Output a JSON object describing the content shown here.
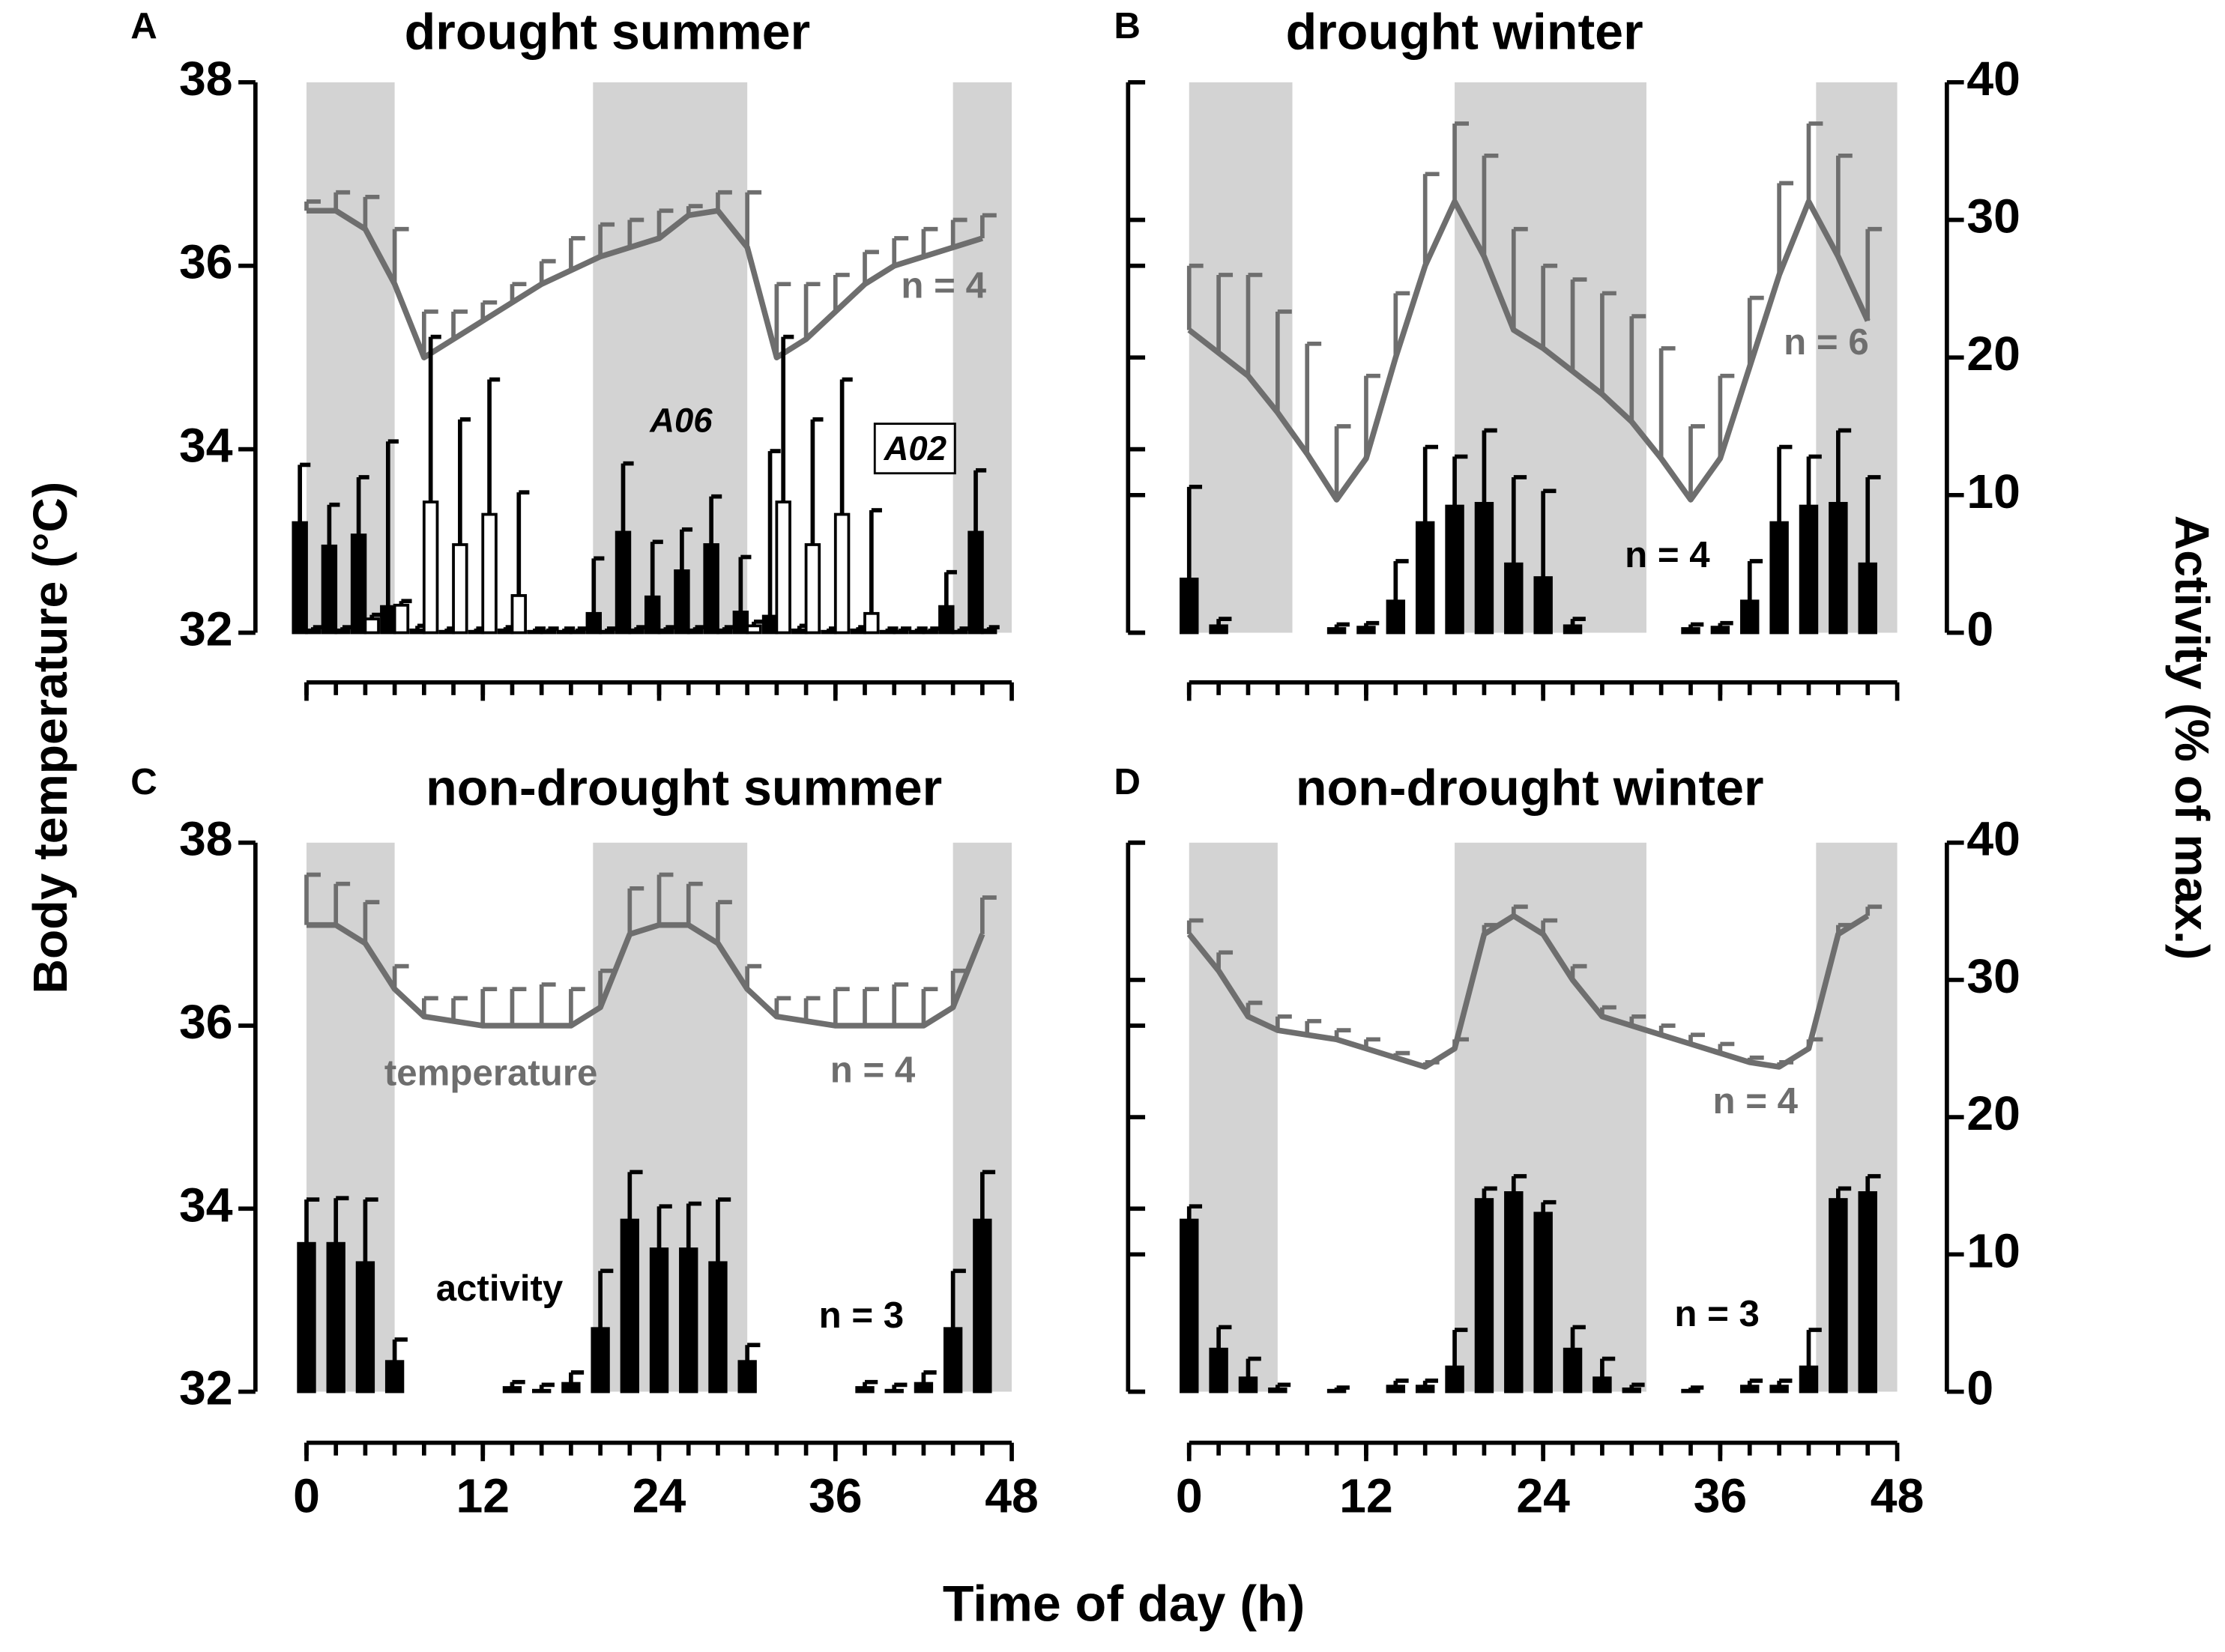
{
  "figure": {
    "ylabel": "Body temperature (°C)",
    "y2label": "Activity (% of max.)",
    "xlabel": "Time of day (h)"
  },
  "chart_data": [
    {
      "type": "bar_line",
      "letter": "A",
      "title": "drought summer",
      "x": [
        0,
        2,
        4,
        6,
        8,
        10,
        12,
        14,
        16,
        18,
        20,
        22,
        24,
        26,
        28,
        30,
        32,
        34,
        36,
        38,
        40,
        42,
        44,
        46
      ],
      "xlim": [
        0,
        48
      ],
      "xticks": [
        0,
        12,
        24,
        36,
        48
      ],
      "xticklabels": false,
      "ylim": [
        32,
        38
      ],
      "yticks": [
        32,
        34,
        36,
        38
      ],
      "yticklabels": true,
      "y2lim": [
        0,
        40
      ],
      "y2ticks": [
        0,
        10,
        20,
        30,
        40
      ],
      "y2ticklabels": false,
      "shade": [
        [
          0,
          6
        ],
        [
          19.5,
          30
        ],
        [
          44,
          48
        ]
      ],
      "shade_color": "#d3d3d3",
      "series": [
        {
          "kind": "line",
          "color": "#6e6e6e",
          "values": [
            36.6,
            36.6,
            36.4,
            35.8,
            35.0,
            35.2,
            35.4,
            35.6,
            35.8,
            35.95,
            36.1,
            36.2,
            36.3,
            36.55,
            36.6,
            36.2,
            35.0,
            35.2,
            35.5,
            35.8,
            36.0,
            36.1,
            36.2,
            36.3
          ],
          "errors": [
            0.1,
            0.2,
            0.35,
            0.6,
            0.5,
            0.3,
            0.2,
            0.2,
            0.25,
            0.35,
            0.35,
            0.3,
            0.3,
            0.1,
            0.2,
            0.6,
            0.8,
            0.6,
            0.4,
            0.35,
            0.3,
            0.3,
            0.3,
            0.25
          ]
        },
        {
          "kind": "bar",
          "axis": "y2",
          "name": "A06",
          "color": "#000000",
          "values": [
            8.0,
            6.3,
            7.1,
            1.9,
            0.2,
            0.1,
            0.1,
            0.2,
            0.1,
            0.1,
            1.4,
            7.3,
            2.6,
            4.5,
            6.4,
            1.5,
            1.2,
            0.2,
            0.1,
            0.2,
            0.1,
            0.1,
            1.9,
            7.3
          ],
          "errors": [
            4.2,
            3.0,
            4.2,
            12.0,
            0.3,
            0.2,
            0.2,
            0.2,
            0.2,
            0.2,
            4.0,
            5.0,
            4.0,
            3.0,
            3.5,
            4.0,
            12.0,
            0.3,
            0.2,
            0.2,
            0.2,
            0.2,
            2.5,
            4.5
          ]
        },
        {
          "kind": "bar",
          "axis": "y2",
          "name": "A02",
          "color": "#ffffff",
          "values": [
            0.2,
            0.2,
            1.0,
            2.0,
            9.5,
            6.4,
            8.6,
            2.7,
            0.1,
            0.1,
            0.1,
            0.2,
            0.2,
            0.2,
            0.2,
            0.5,
            9.5,
            6.4,
            8.6,
            1.4,
            0.1,
            0.1,
            0.1,
            0.2
          ],
          "errors": [
            0.2,
            0.2,
            0.3,
            0.3,
            12.0,
            9.1,
            9.8,
            7.5,
            0.2,
            0.2,
            0.2,
            0.2,
            0.2,
            0.2,
            0.2,
            0.3,
            12.0,
            9.1,
            9.8,
            7.5,
            0.2,
            0.2,
            0.2,
            0.2
          ]
        }
      ],
      "annotations": [
        {
          "text": "n = 4",
          "color": "#6e6e6e"
        }
      ]
    },
    {
      "type": "bar_line",
      "letter": "B",
      "title": "drought winter",
      "x": [
        0,
        2,
        4,
        6,
        8,
        10,
        12,
        14,
        16,
        18,
        20,
        22,
        24,
        26,
        28,
        30,
        32,
        34,
        36,
        38,
        40,
        42,
        44,
        46
      ],
      "xlim": [
        0,
        48
      ],
      "xticks": [
        0,
        12,
        24,
        36,
        48
      ],
      "xticklabels": false,
      "ylim": [
        32,
        38
      ],
      "yticks": [
        32,
        34,
        36,
        38
      ],
      "yticklabels": false,
      "y2lim": [
        0,
        40
      ],
      "y2ticks": [
        0,
        10,
        20,
        30,
        40
      ],
      "y2ticklabels": true,
      "shade": [
        [
          0,
          7
        ],
        [
          18,
          31
        ],
        [
          42.5,
          48
        ]
      ],
      "shade_color": "#d3d3d3",
      "series": [
        {
          "kind": "line",
          "color": "#6e6e6e",
          "values": [
            35.3,
            35.05,
            34.8,
            34.4,
            33.95,
            33.45,
            33.9,
            35.0,
            36.0,
            36.7,
            36.1,
            35.3,
            35.1,
            34.85,
            34.6,
            34.3,
            33.9,
            33.45,
            33.9,
            34.9,
            35.9,
            36.7,
            36.1,
            35.4
          ],
          "errors": [
            0.7,
            0.85,
            1.1,
            1.1,
            1.2,
            0.8,
            0.9,
            0.7,
            1.0,
            0.85,
            1.1,
            1.1,
            0.9,
            1.0,
            1.1,
            1.15,
            1.2,
            0.8,
            0.9,
            0.75,
            1.0,
            0.85,
            1.1,
            1.0
          ]
        },
        {
          "kind": "bar",
          "axis": "y2",
          "color": "#000000",
          "values": [
            3.9,
            0.5,
            null,
            null,
            null,
            0.3,
            0.4,
            2.3,
            8.0,
            9.2,
            9.4,
            5.0,
            4.0,
            0.5,
            null,
            null,
            null,
            0.3,
            0.4,
            2.3,
            8.0,
            9.2,
            9.4,
            5.0
          ],
          "errors": [
            6.7,
            0.5,
            null,
            null,
            null,
            0.3,
            0.3,
            2.9,
            5.5,
            3.6,
            5.3,
            6.3,
            6.3,
            0.5,
            null,
            null,
            null,
            0.3,
            0.3,
            2.9,
            5.5,
            3.6,
            5.3,
            6.3
          ]
        }
      ],
      "annotations": [
        {
          "text": "n = 6",
          "color": "#6e6e6e"
        },
        {
          "text": "n = 4",
          "color": "#000000"
        }
      ]
    },
    {
      "type": "bar_line",
      "letter": "C",
      "title": "non-drought summer",
      "x": [
        0,
        2,
        4,
        6,
        8,
        10,
        12,
        14,
        16,
        18,
        20,
        22,
        24,
        26,
        28,
        30,
        32,
        34,
        36,
        38,
        40,
        42,
        44,
        46
      ],
      "xlim": [
        0,
        48
      ],
      "xticks": [
        0,
        12,
        24,
        36,
        48
      ],
      "xticklabels": true,
      "ylim": [
        32,
        38
      ],
      "yticks": [
        32,
        34,
        36,
        38
      ],
      "yticklabels": true,
      "y2lim": [
        0,
        40
      ],
      "y2ticks": [
        0,
        10,
        20,
        30,
        40
      ],
      "y2ticklabels": false,
      "shade": [
        [
          0,
          6
        ],
        [
          19.5,
          30
        ],
        [
          44,
          48
        ]
      ],
      "shade_color": "#d3d3d3",
      "series": [
        {
          "kind": "line",
          "color": "#6e6e6e",
          "values": [
            37.1,
            37.1,
            36.9,
            36.4,
            36.1,
            36.05,
            36.0,
            36.0,
            36.0,
            36.0,
            36.2,
            37.0,
            37.1,
            37.1,
            36.9,
            36.4,
            36.1,
            36.05,
            36.0,
            36.0,
            36.0,
            36.0,
            36.2,
            37.0
          ],
          "errors": [
            0.55,
            0.45,
            0.45,
            0.25,
            0.2,
            0.25,
            0.4,
            0.4,
            0.45,
            0.4,
            0.4,
            0.5,
            0.55,
            0.45,
            0.45,
            0.25,
            0.2,
            0.25,
            0.4,
            0.4,
            0.45,
            0.4,
            0.4,
            0.4
          ]
        },
        {
          "kind": "bar",
          "axis": "y2",
          "color": "#000000",
          "values": [
            10.8,
            10.8,
            9.4,
            2.2,
            null,
            null,
            null,
            0.3,
            0.1,
            0.6,
            4.6,
            12.5,
            10.4,
            10.4,
            9.4,
            2.2,
            null,
            null,
            null,
            0.3,
            0.1,
            0.6,
            4.6,
            12.5
          ],
          "errors": [
            3.2,
            3.3,
            4.6,
            1.6,
            null,
            null,
            null,
            0.4,
            0.4,
            0.8,
            4.2,
            3.5,
            3.1,
            3.3,
            4.6,
            1.2,
            null,
            null,
            null,
            0.4,
            0.4,
            0.8,
            4.2,
            3.5
          ]
        }
      ],
      "annotations": [
        {
          "text": "temperature",
          "color": "#6e6e6e"
        },
        {
          "text": "n = 4",
          "color": "#6e6e6e"
        },
        {
          "text": "activity",
          "color": "#000000"
        },
        {
          "text": "n = 3",
          "color": "#000000"
        }
      ]
    },
    {
      "type": "bar_line",
      "letter": "D",
      "title": "non-drought winter",
      "x": [
        0,
        2,
        4,
        6,
        8,
        10,
        12,
        14,
        16,
        18,
        20,
        22,
        24,
        26,
        28,
        30,
        32,
        34,
        36,
        38,
        40,
        42,
        44,
        46
      ],
      "xlim": [
        0,
        48
      ],
      "xticks": [
        0,
        12,
        24,
        36,
        48
      ],
      "xticklabels": true,
      "ylim": [
        32,
        38
      ],
      "yticks": [
        32,
        34,
        36,
        38
      ],
      "yticklabels": false,
      "y2lim": [
        0,
        40
      ],
      "y2ticks": [
        0,
        10,
        20,
        30,
        40
      ],
      "y2ticklabels": true,
      "shade": [
        [
          0,
          6
        ],
        [
          18,
          31
        ],
        [
          42.5,
          48
        ]
      ],
      "shade_color": "#d3d3d3",
      "series": [
        {
          "kind": "line",
          "color": "#6e6e6e",
          "values": [
            37.0,
            36.6,
            36.1,
            35.95,
            35.9,
            35.85,
            35.75,
            35.65,
            35.55,
            35.75,
            37.0,
            37.2,
            37.0,
            36.5,
            36.1,
            36.0,
            35.9,
            35.8,
            35.7,
            35.6,
            35.55,
            35.75,
            37.0,
            37.2
          ],
          "errors": [
            0.15,
            0.2,
            0.15,
            0.15,
            0.15,
            0.1,
            0.1,
            0.05,
            0.05,
            0.1,
            0.1,
            0.1,
            0.15,
            0.15,
            0.1,
            0.1,
            0.1,
            0.1,
            0.1,
            0.05,
            0.05,
            0.1,
            0.1,
            0.1
          ]
        },
        {
          "kind": "bar",
          "axis": "y2",
          "color": "#000000",
          "values": [
            12.5,
            3.1,
            1.0,
            0.2,
            null,
            0.1,
            null,
            0.4,
            0.4,
            1.8,
            14.0,
            14.5,
            13.0,
            3.1,
            1.0,
            0.2,
            null,
            0.1,
            null,
            0.4,
            0.4,
            1.8,
            14.0,
            14.5
          ],
          "errors": [
            1.0,
            1.6,
            1.4,
            0.3,
            null,
            0.2,
            null,
            0.4,
            0.4,
            2.7,
            0.8,
            1.2,
            0.8,
            1.6,
            1.4,
            0.3,
            null,
            0.2,
            null,
            0.4,
            0.4,
            2.7,
            0.8,
            1.2
          ]
        }
      ],
      "annotations": [
        {
          "text": "n = 4",
          "color": "#6e6e6e"
        },
        {
          "text": "n = 3",
          "color": "#000000"
        }
      ]
    }
  ]
}
